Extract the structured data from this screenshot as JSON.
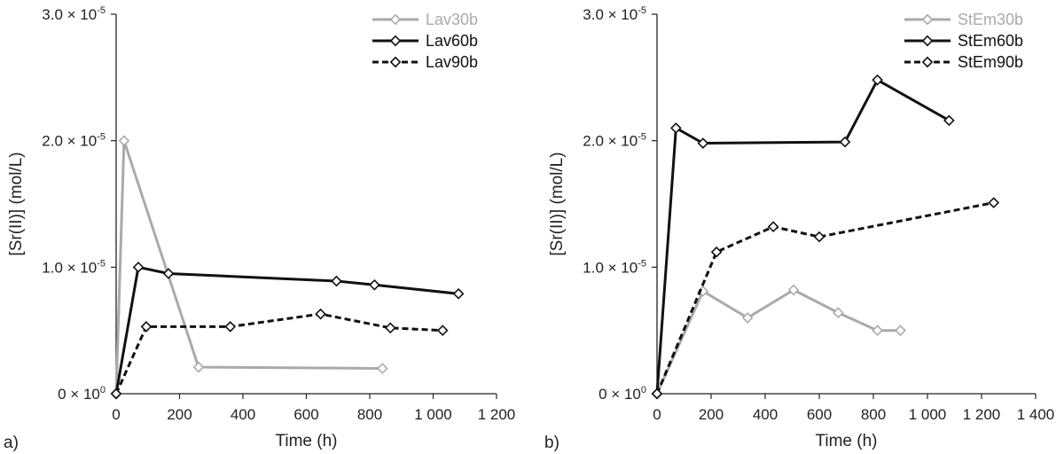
{
  "chart_data": [
    {
      "type": "line",
      "panel_label": "a)",
      "xlabel": "Time (h)",
      "ylabel": "[Sr(II)] (mol/L)",
      "xlim": [
        0,
        1200
      ],
      "ylim": [
        0,
        3e-05
      ],
      "x_ticks": [
        "0",
        "200",
        "400",
        "600",
        "800",
        "1 000",
        "1 200"
      ],
      "y_ticks": [
        {
          "value": 0,
          "mant": "0",
          "exp": "0"
        },
        {
          "value": 1e-05,
          "mant": "1.0",
          "exp": "-5"
        },
        {
          "value": 2e-05,
          "mant": "2.0",
          "exp": "-5"
        },
        {
          "value": 3e-05,
          "mant": "3.0",
          "exp": "-5"
        }
      ],
      "legend_position": "top-right",
      "series": [
        {
          "name": "Lav30b",
          "color": "#aaaaaa",
          "dash": "solid",
          "x": [
            0,
            25,
            260,
            840
          ],
          "y": [
            0,
            2e-05,
            2.1e-06,
            2e-06
          ]
        },
        {
          "name": "Lav60b",
          "color": "#111111",
          "dash": "solid",
          "x": [
            0,
            70,
            165,
            695,
            815,
            1080
          ],
          "y": [
            0,
            1e-05,
            9.5e-06,
            8.9e-06,
            8.6e-06,
            7.9e-06
          ]
        },
        {
          "name": "Lav90b",
          "color": "#111111",
          "dash": "dashed",
          "x": [
            0,
            95,
            360,
            645,
            865,
            1030
          ],
          "y": [
            0,
            5.3e-06,
            5.3e-06,
            6.3e-06,
            5.2e-06,
            5e-06
          ]
        }
      ]
    },
    {
      "type": "line",
      "panel_label": "b)",
      "xlabel": "Time (h)",
      "ylabel": "[Sr(II)] (mol/L)",
      "xlim": [
        0,
        1400
      ],
      "ylim": [
        0,
        3e-05
      ],
      "x_ticks": [
        "0",
        "200",
        "400",
        "600",
        "800",
        "1 000",
        "1 200",
        "1 400"
      ],
      "y_ticks": [
        {
          "value": 0,
          "mant": "0",
          "exp": "0"
        },
        {
          "value": 1e-05,
          "mant": "1.0",
          "exp": "-5"
        },
        {
          "value": 2e-05,
          "mant": "2.0",
          "exp": "-5"
        },
        {
          "value": 3e-05,
          "mant": "3.0",
          "exp": "-5"
        }
      ],
      "legend_position": "top-right",
      "series": [
        {
          "name": "StEm30b",
          "color": "#aaaaaa",
          "dash": "solid",
          "x": [
            0,
            170,
            335,
            505,
            670,
            815,
            900
          ],
          "y": [
            0,
            8.1e-06,
            6e-06,
            8.2e-06,
            6.4e-06,
            5e-06,
            5e-06
          ]
        },
        {
          "name": "StEm60b",
          "color": "#111111",
          "dash": "solid",
          "x": [
            0,
            70,
            170,
            695,
            815,
            1080
          ],
          "y": [
            0,
            2.1e-05,
            1.98e-05,
            1.99e-05,
            2.48e-05,
            2.16e-05
          ]
        },
        {
          "name": "StEm90b",
          "color": "#111111",
          "dash": "dashed",
          "x": [
            0,
            220,
            430,
            600,
            1245
          ],
          "y": [
            0,
            1.12e-05,
            1.32e-05,
            1.24e-05,
            1.51e-05
          ]
        }
      ]
    }
  ]
}
